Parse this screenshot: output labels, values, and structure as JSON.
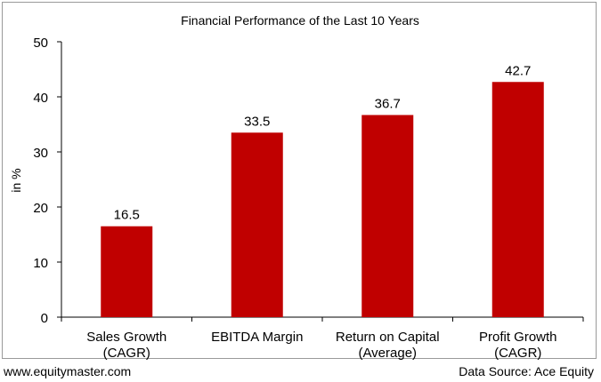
{
  "chart_data": {
    "type": "bar",
    "title": "Financial Performance of the Last 10 Years",
    "ylabel": "in %",
    "xlabel": "",
    "ylim": [
      0,
      50
    ],
    "yticks": [
      0,
      10,
      20,
      30,
      40,
      50
    ],
    "categories": [
      [
        "Sales Growth",
        "(CAGR)"
      ],
      [
        "EBITDA Margin"
      ],
      [
        "Return on Capital",
        "(Average)"
      ],
      [
        "Profit Growth",
        "(CAGR)"
      ]
    ],
    "values": [
      16.5,
      33.5,
      36.7,
      42.7
    ],
    "data_labels": [
      "16.5",
      "33.5",
      "36.7",
      "42.7"
    ],
    "grid": false,
    "legend": "none",
    "bar_color": "#C00000"
  },
  "footer": {
    "left": "www.equitymaster.com",
    "right": "Data Source: Ace Equity"
  }
}
